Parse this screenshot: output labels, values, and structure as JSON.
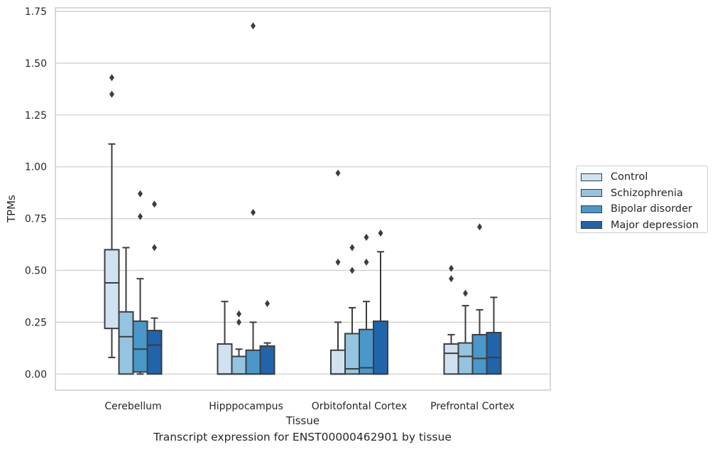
{
  "caption": "Transcript expression for ENST00000462901 by tissue",
  "chart_data": {
    "type": "box",
    "xlabel": "Tissue",
    "ylabel": "TPMs",
    "ylim": [
      -0.08,
      1.76
    ],
    "yticks": [
      "0.00",
      "0.25",
      "0.50",
      "0.75",
      "1.00",
      "1.25",
      "1.50",
      "1.75"
    ],
    "categories": [
      "Cerebellum",
      "Hipppocampus",
      "Orbitofontal Cortex",
      "Prefrontal Cortex"
    ],
    "grid": "horizontal",
    "legend_position": "right",
    "series": [
      {
        "name": "Control",
        "color": "#d0e1f2",
        "boxes": [
          {
            "low": 0.08,
            "q1": 0.22,
            "median": 0.44,
            "q3": 0.6,
            "high": 1.11,
            "outliers": [
              1.35,
              1.43
            ]
          },
          {
            "low": 0.0,
            "q1": 0.0,
            "median": 0.0,
            "q3": 0.145,
            "high": 0.35,
            "outliers": []
          },
          {
            "low": 0.0,
            "q1": 0.0,
            "median": 0.0,
            "q3": 0.115,
            "high": 0.25,
            "outliers": [
              0.54,
              0.97
            ]
          },
          {
            "low": 0.0,
            "q1": 0.0,
            "median": 0.1,
            "q3": 0.145,
            "high": 0.19,
            "outliers": [
              0.46,
              0.51
            ]
          }
        ]
      },
      {
        "name": "Schizophrenia",
        "color": "#94c4df",
        "boxes": [
          {
            "low": 0.0,
            "q1": 0.0,
            "median": 0.18,
            "q3": 0.3,
            "high": 0.61,
            "outliers": []
          },
          {
            "low": 0.0,
            "q1": 0.0,
            "median": 0.0,
            "q3": 0.085,
            "high": 0.12,
            "outliers": [
              0.25,
              0.29
            ]
          },
          {
            "low": 0.0,
            "q1": 0.0,
            "median": 0.025,
            "q3": 0.195,
            "high": 0.32,
            "outliers": [
              0.5,
              0.61
            ]
          },
          {
            "low": 0.0,
            "q1": 0.0,
            "median": 0.085,
            "q3": 0.15,
            "high": 0.33,
            "outliers": [
              0.39
            ]
          }
        ]
      },
      {
        "name": "Bipolar disorder",
        "color": "#4a98c9",
        "boxes": [
          {
            "low": 0.0,
            "q1": 0.01,
            "median": 0.12,
            "q3": 0.255,
            "high": 0.46,
            "outliers": [
              0.76,
              0.87
            ]
          },
          {
            "low": 0.0,
            "q1": 0.0,
            "median": 0.0,
            "q3": 0.115,
            "high": 0.25,
            "outliers": [
              0.78,
              1.68
            ]
          },
          {
            "low": 0.0,
            "q1": 0.0,
            "median": 0.03,
            "q3": 0.215,
            "high": 0.35,
            "outliers": [
              0.54,
              0.66
            ]
          },
          {
            "low": 0.0,
            "q1": 0.0,
            "median": 0.075,
            "q3": 0.19,
            "high": 0.31,
            "outliers": [
              0.71
            ]
          }
        ]
      },
      {
        "name": "Major depression",
        "color": "#2164ab",
        "boxes": [
          {
            "low": 0.0,
            "q1": 0.0,
            "median": 0.14,
            "q3": 0.21,
            "high": 0.27,
            "outliers": [
              0.61,
              0.82
            ]
          },
          {
            "low": 0.0,
            "q1": 0.0,
            "median": 0.0,
            "q3": 0.135,
            "high": 0.15,
            "outliers": [
              0.34
            ]
          },
          {
            "low": 0.0,
            "q1": 0.0,
            "median": 0.0,
            "q3": 0.255,
            "high": 0.59,
            "outliers": [
              0.68
            ]
          },
          {
            "low": 0.0,
            "q1": 0.0,
            "median": 0.08,
            "q3": 0.2,
            "high": 0.37,
            "outliers": []
          }
        ]
      }
    ]
  }
}
